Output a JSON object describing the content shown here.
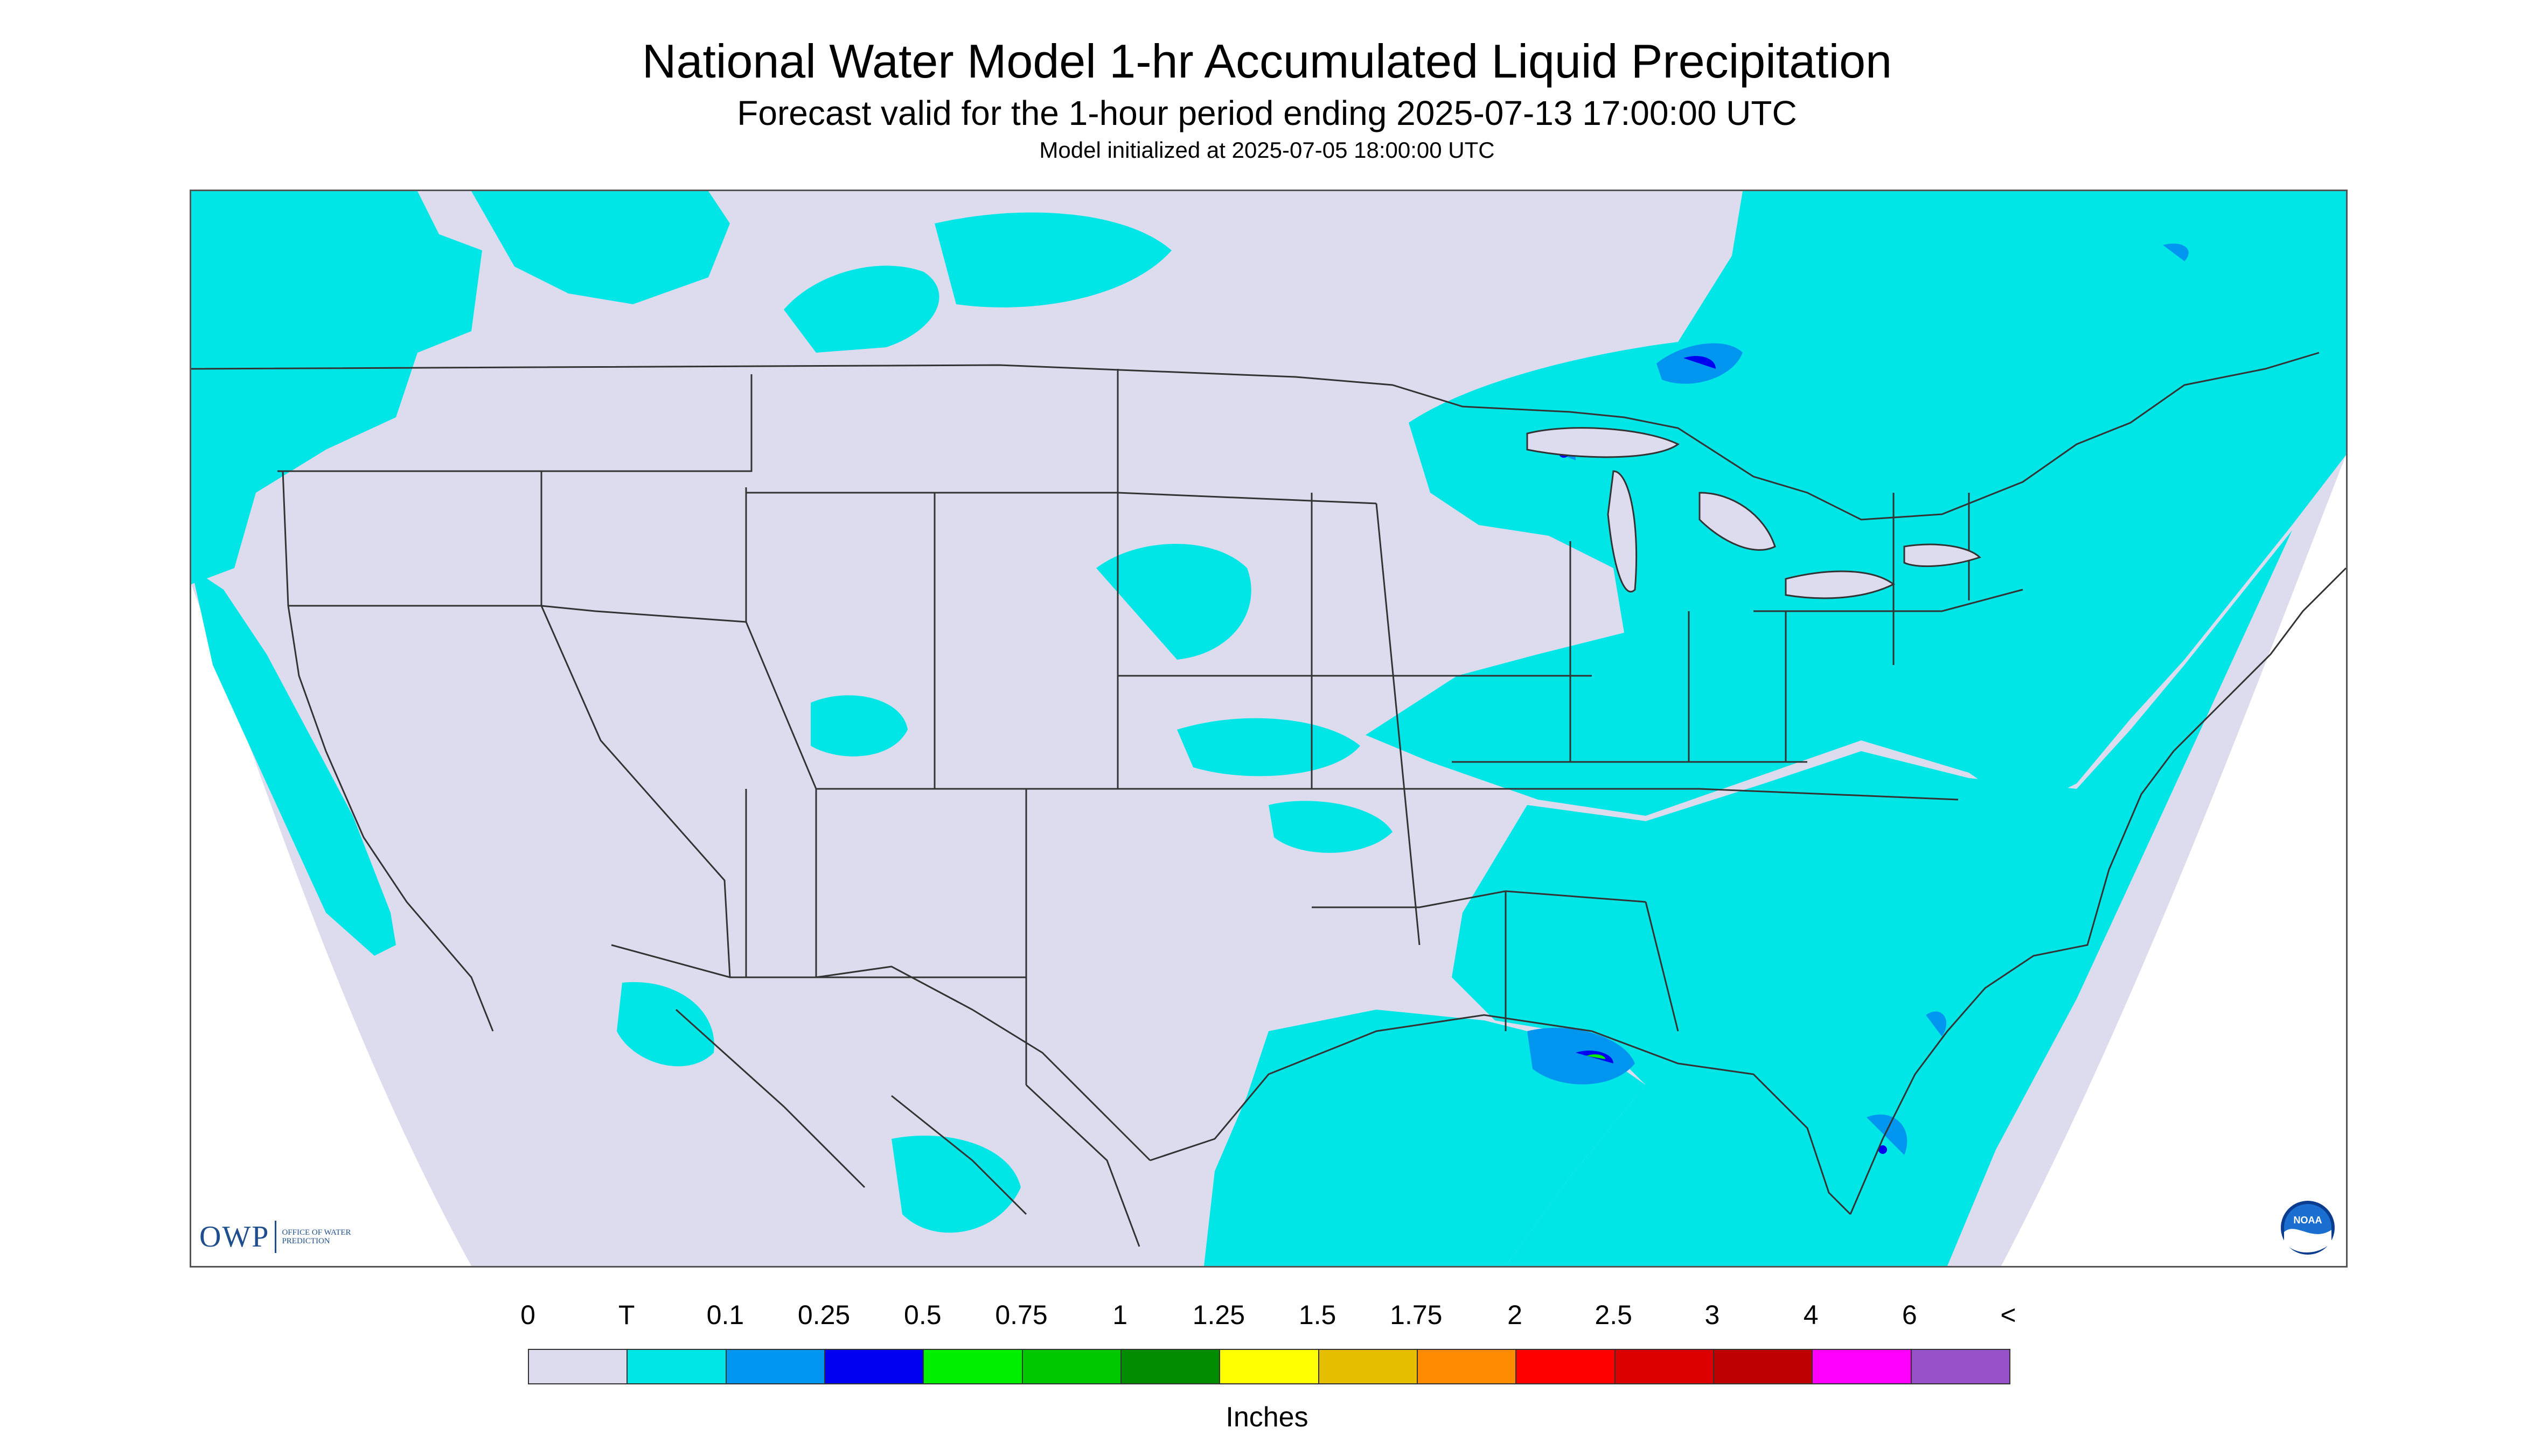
{
  "title": {
    "main": "National Water Model 1-hr Accumulated Liquid Precipitation",
    "forecast": "Forecast valid for the 1-hour period ending 2025-07-13 17:00:00 UTC",
    "initialized": "Model initialized at 2025-07-05 18:00:00 UTC"
  },
  "map": {
    "region": "Contiguous United States",
    "background_color": "#dcdcee",
    "boundary_color": "#333333"
  },
  "logos": {
    "owp_abbrev": "OWP",
    "owp_full": "OFFICE OF WATER PREDICTION",
    "noaa": "NOAA"
  },
  "legend": {
    "labels": [
      "0",
      "T",
      "0.1",
      "0.25",
      "0.5",
      "0.75",
      "1",
      "1.25",
      "1.5",
      "1.75",
      "2",
      "2.5",
      "3",
      "4",
      "6",
      "<"
    ],
    "colors": [
      "#dcdcee",
      "#00e6e6",
      "#0096f0",
      "#0000f0",
      "#00f000",
      "#00c800",
      "#008c00",
      "#ffff00",
      "#e6be00",
      "#ff8c00",
      "#ff0000",
      "#dc0000",
      "#be0000",
      "#ff00ff",
      "#9650c8"
    ],
    "units": "Inches"
  }
}
